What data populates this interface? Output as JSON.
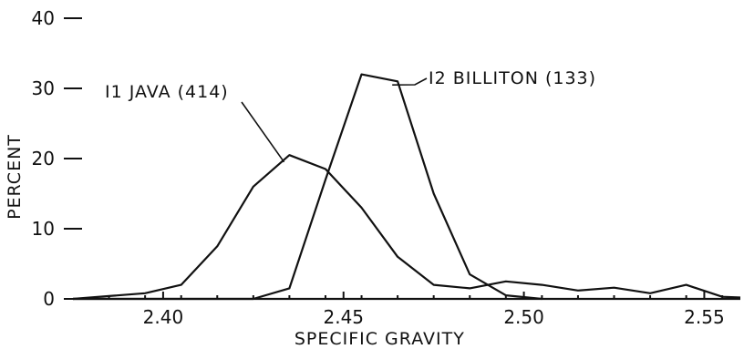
{
  "chart_data": {
    "type": "line",
    "xlabel": "SPECIFIC GRAVITY",
    "ylabel": "PERCENT",
    "xlim": [
      2.375,
      2.56
    ],
    "ylim": [
      0,
      40
    ],
    "x_ticks": [
      "2.40",
      "2.45",
      "2.50",
      "2.55"
    ],
    "y_ticks": [
      "0",
      "10",
      "20",
      "30",
      "40"
    ],
    "grid": false,
    "series": [
      {
        "name": "I1 JAVA (414)",
        "x": [
          2.375,
          2.385,
          2.395,
          2.405,
          2.415,
          2.425,
          2.435,
          2.445,
          2.455,
          2.465,
          2.475,
          2.485,
          2.495,
          2.505,
          2.515,
          2.525,
          2.535,
          2.545,
          2.555,
          2.56
        ],
        "y": [
          0,
          0.4,
          0.8,
          2.0,
          7.5,
          16.0,
          20.5,
          18.5,
          13.0,
          6.0,
          2.0,
          1.5,
          2.5,
          2.0,
          1.2,
          1.6,
          0.8,
          2.0,
          0.3,
          0.2
        ]
      },
      {
        "name": "I2 BILLITON (133)",
        "x": [
          2.375,
          2.425,
          2.435,
          2.445,
          2.455,
          2.465,
          2.475,
          2.485,
          2.495,
          2.505
        ],
        "y": [
          0,
          0,
          1.5,
          17.0,
          32.0,
          31.0,
          15.0,
          3.5,
          0.5,
          0
        ]
      }
    ],
    "annotations": [
      "I1 JAVA (414)",
      "I2 BILLITON (133)"
    ]
  }
}
